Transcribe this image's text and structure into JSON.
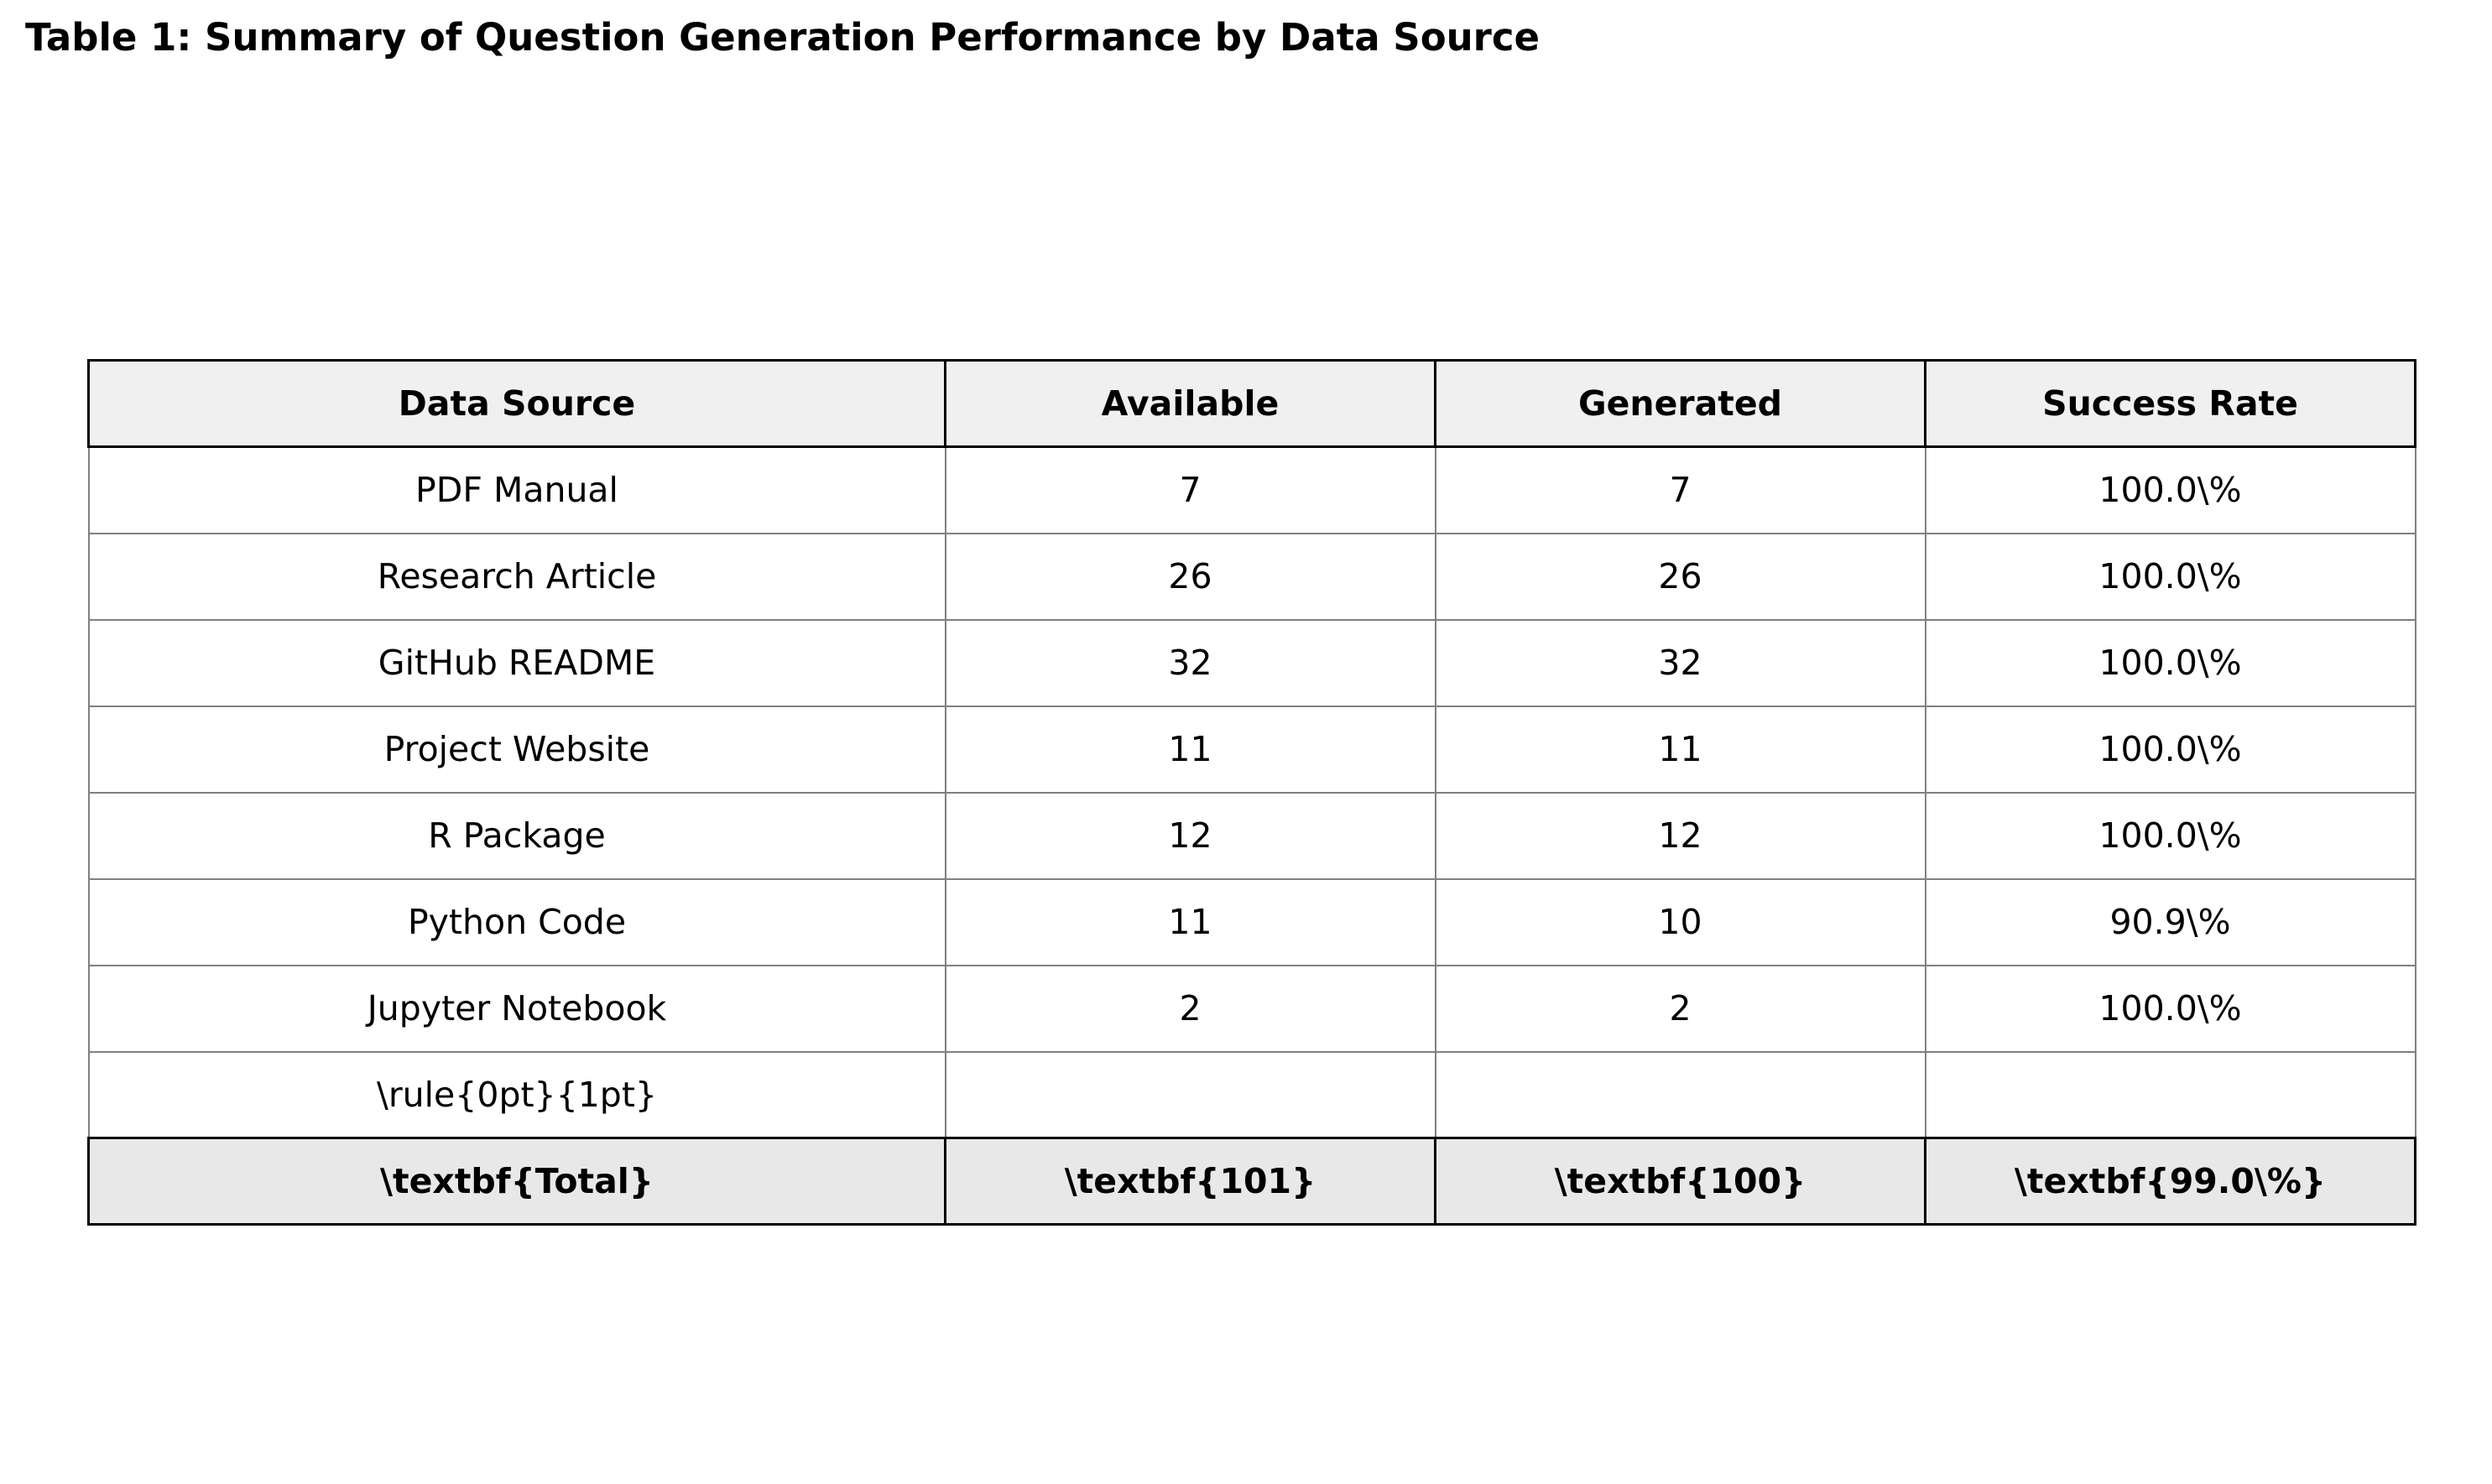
{
  "title": "Table 1: Summary of Question Generation Performance by Data Source",
  "chart_data": {
    "type": "table",
    "title": "Table 1: Summary of Question Generation Performance by Data Source",
    "columns": [
      "Data Source",
      "Available",
      "Generated",
      "Success Rate"
    ],
    "rows": [
      [
        "PDF Manual",
        "7",
        "7",
        "100.0\\%"
      ],
      [
        "Research Article",
        "26",
        "26",
        "100.0\\%"
      ],
      [
        "GitHub README",
        "32",
        "32",
        "100.0\\%"
      ],
      [
        "Project Website",
        "11",
        "11",
        "100.0\\%"
      ],
      [
        "R Package",
        "12",
        "12",
        "100.0\\%"
      ],
      [
        "Python Code",
        "11",
        "10",
        "90.9\\%"
      ],
      [
        "Jupyter Notebook",
        "2",
        "2",
        "100.0\\%"
      ],
      [
        "\\rule{0pt}{1pt}",
        "",
        "",
        ""
      ]
    ],
    "total": [
      "\\textbf{Total}",
      "\\textbf{101}",
      "\\textbf{100}",
      "\\textbf{99.0\\%}"
    ],
    "colors": {
      "header_bg": "#f0f0f0",
      "total_bg": "#e8e8e8",
      "grid": "#808080",
      "border": "#000000"
    }
  }
}
